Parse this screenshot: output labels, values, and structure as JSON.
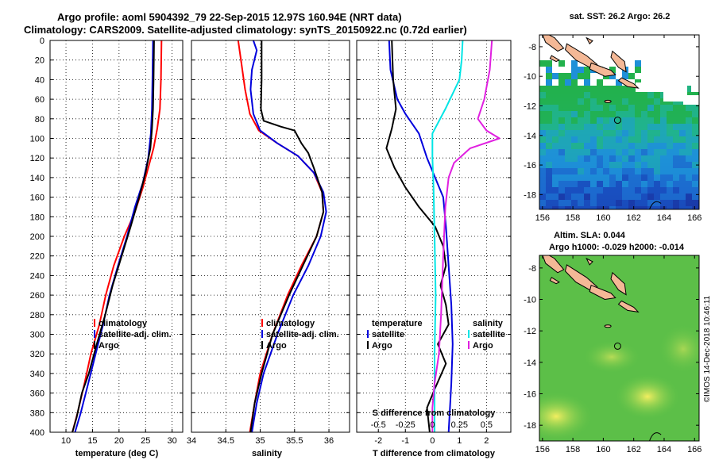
{
  "header": {
    "line1": "Argo profile: aoml 5904392_79 22-Sep-2015 12.97S 160.94E (NRT data)",
    "line2": "Climatology: CARS2009. Satellite-adjusted climatology: synTS_20150922.nc (0.72d earlier)"
  },
  "colors": {
    "climatology": "#ff0000",
    "satellite": "#0000dd",
    "argo": "#000000",
    "sat_salinity": "#00e5e5",
    "clim_salinity": "#e020e0",
    "land": "#f4b896"
  },
  "depth_axis": {
    "ticks": [
      "0",
      "20",
      "40",
      "60",
      "80",
      "100",
      "120",
      "140",
      "160",
      "180",
      "200",
      "220",
      "240",
      "260",
      "280",
      "300",
      "320",
      "340",
      "360",
      "380",
      "400"
    ]
  },
  "chart_data": [
    {
      "type": "line",
      "name": "temperature",
      "xlabel": "temperature (deg C)",
      "ylabel": "depth",
      "xlim": [
        7,
        32
      ],
      "ylim": [
        400,
        0
      ],
      "xticks": [
        "10",
        "15",
        "20",
        "25",
        "30"
      ],
      "legend": [
        "climatology",
        "satellite-adj. clim.",
        "Argo"
      ],
      "series": [
        {
          "name": "climatology",
          "color": "red",
          "points": [
            [
              28.0,
              0
            ],
            [
              27.9,
              40
            ],
            [
              27.7,
              70
            ],
            [
              27.2,
              90
            ],
            [
              26.5,
              110
            ],
            [
              25.5,
              130
            ],
            [
              24.5,
              150
            ],
            [
              23.0,
              175
            ],
            [
              21.0,
              200
            ],
            [
              19.0,
              230
            ],
            [
              17.5,
              260
            ],
            [
              16.3,
              290
            ],
            [
              14.7,
              320
            ],
            [
              13.5,
              350
            ],
            [
              12.2,
              380
            ],
            [
              11.2,
              400
            ]
          ]
        },
        {
          "name": "satellite-adj. clim.",
          "color": "blue",
          "points": [
            [
              26.4,
              0
            ],
            [
              26.3,
              40
            ],
            [
              26.2,
              70
            ],
            [
              26.0,
              95
            ],
            [
              25.5,
              120
            ],
            [
              24.5,
              145
            ],
            [
              23.0,
              170
            ],
            [
              21.5,
              200
            ],
            [
              19.8,
              230
            ],
            [
              18.2,
              260
            ],
            [
              17.0,
              290
            ],
            [
              15.6,
              320
            ],
            [
              14.2,
              350
            ],
            [
              12.8,
              380
            ],
            [
              11.7,
              400
            ]
          ]
        },
        {
          "name": "Argo",
          "color": "black",
          "points": [
            [
              26.6,
              0
            ],
            [
              26.5,
              40
            ],
            [
              26.4,
              70
            ],
            [
              26.2,
              90
            ],
            [
              25.9,
              110
            ],
            [
              25.0,
              135
            ],
            [
              23.8,
              160
            ],
            [
              22.2,
              190
            ],
            [
              20.5,
              220
            ],
            [
              18.8,
              250
            ],
            [
              17.4,
              280
            ],
            [
              15.8,
              310
            ],
            [
              14.3,
              340
            ],
            [
              13.0,
              360
            ],
            [
              12.0,
              385
            ],
            [
              11.2,
              400
            ]
          ]
        }
      ]
    },
    {
      "type": "line",
      "name": "salinity",
      "xlabel": "salinity",
      "ylabel": "depth",
      "xlim": [
        34.0,
        36.3
      ],
      "ylim": [
        400,
        0
      ],
      "xticks": [
        "34",
        "34.5",
        "35",
        "35.5",
        "36"
      ],
      "legend": [
        "climatology",
        "satellite-adj. clim.",
        "Argo"
      ],
      "series": [
        {
          "name": "climatology",
          "color": "red",
          "points": [
            [
              34.68,
              0
            ],
            [
              34.72,
              20
            ],
            [
              34.78,
              50
            ],
            [
              34.85,
              75
            ],
            [
              34.98,
              92
            ],
            [
              35.25,
              105
            ],
            [
              35.55,
              118
            ],
            [
              35.78,
              135
            ],
            [
              35.9,
              155
            ],
            [
              35.92,
              175
            ],
            [
              35.82,
              200
            ],
            [
              35.6,
              230
            ],
            [
              35.4,
              260
            ],
            [
              35.18,
              300
            ],
            [
              35.0,
              340
            ],
            [
              34.92,
              370
            ],
            [
              34.85,
              400
            ]
          ]
        },
        {
          "name": "satellite-adj. clim.",
          "color": "blue",
          "points": [
            [
              34.9,
              0
            ],
            [
              34.95,
              10
            ],
            [
              34.88,
              30
            ],
            [
              34.86,
              50
            ],
            [
              34.9,
              75
            ],
            [
              35.0,
              92
            ],
            [
              35.25,
              105
            ],
            [
              35.55,
              118
            ],
            [
              35.78,
              135
            ],
            [
              35.92,
              155
            ],
            [
              35.96,
              175
            ],
            [
              35.88,
              200
            ],
            [
              35.7,
              230
            ],
            [
              35.48,
              260
            ],
            [
              35.25,
              300
            ],
            [
              35.05,
              340
            ],
            [
              34.95,
              370
            ],
            [
              34.88,
              400
            ]
          ]
        },
        {
          "name": "Argo",
          "color": "black",
          "points": [
            [
              35.02,
              0
            ],
            [
              35.02,
              40
            ],
            [
              35.01,
              70
            ],
            [
              35.05,
              82
            ],
            [
              35.3,
              88
            ],
            [
              35.5,
              92
            ],
            [
              35.6,
              105
            ],
            [
              35.7,
              115
            ],
            [
              35.78,
              130
            ],
            [
              35.9,
              155
            ],
            [
              35.92,
              175
            ],
            [
              35.82,
              200
            ],
            [
              35.62,
              230
            ],
            [
              35.42,
              260
            ],
            [
              35.18,
              300
            ],
            [
              35.02,
              340
            ],
            [
              34.92,
              370
            ],
            [
              34.86,
              400
            ]
          ]
        }
      ]
    },
    {
      "type": "line",
      "name": "difference",
      "xlabel": "T difference from climatology",
      "top_xlabel": "S difference from climatology",
      "ylabel": "depth",
      "xlim": [
        -2.8,
        2.9
      ],
      "ylim": [
        400,
        0
      ],
      "xticks": [
        "-2",
        "-1",
        "0",
        "1",
        "2"
      ],
      "top_xlim": [
        -0.7,
        0.725
      ],
      "top_xticks": [
        "-0.5",
        "-0.25",
        "0",
        "0.25",
        "0.5"
      ],
      "legend_left_title": "temperature",
      "legend_right_title": "salinity",
      "legend_left": [
        "satellite",
        "Argo"
      ],
      "legend_right": [
        "satellite",
        "Argo"
      ],
      "series": [
        {
          "name": "T satellite",
          "color": "blue",
          "points": [
            [
              -1.6,
              0
            ],
            [
              -1.55,
              30
            ],
            [
              -1.3,
              60
            ],
            [
              -1.0,
              75
            ],
            [
              -0.5,
              95
            ],
            [
              -0.2,
              120
            ],
            [
              0.1,
              140
            ],
            [
              0.4,
              160
            ],
            [
              0.5,
              190
            ],
            [
              0.6,
              230
            ],
            [
              0.7,
              270
            ],
            [
              0.75,
              310
            ],
            [
              0.7,
              350
            ],
            [
              0.6,
              400
            ]
          ]
        },
        {
          "name": "T Argo",
          "color": "black",
          "points": [
            [
              -1.5,
              0
            ],
            [
              -1.45,
              40
            ],
            [
              -1.35,
              70
            ],
            [
              -1.5,
              90
            ],
            [
              -1.7,
              110
            ],
            [
              -1.4,
              130
            ],
            [
              -1.0,
              150
            ],
            [
              -0.5,
              170
            ],
            [
              0.1,
              190
            ],
            [
              0.4,
              210
            ],
            [
              0.5,
              230
            ],
            [
              0.3,
              250
            ],
            [
              0.5,
              270
            ],
            [
              0.6,
              290
            ],
            [
              0.2,
              310
            ],
            [
              0.5,
              330
            ],
            [
              0.1,
              355
            ],
            [
              -0.2,
              375
            ],
            [
              -0.1,
              400
            ]
          ]
        },
        {
          "name": "S satellite",
          "color": "cyan",
          "points": [
            [
              0.28,
              0
            ],
            [
              0.27,
              20
            ],
            [
              0.25,
              40
            ],
            [
              0.12,
              70
            ],
            [
              0.0,
              95
            ],
            [
              0.0,
              120
            ],
            [
              0.01,
              150
            ],
            [
              0.02,
              200
            ],
            [
              0.03,
              260
            ],
            [
              0.02,
              320
            ],
            [
              0.02,
              400
            ]
          ]
        },
        {
          "name": "S Argo",
          "color": "magenta",
          "points": [
            [
              0.55,
              0
            ],
            [
              0.53,
              30
            ],
            [
              0.48,
              60
            ],
            [
              0.42,
              80
            ],
            [
              0.5,
              92
            ],
            [
              0.62,
              100
            ],
            [
              0.35,
              110
            ],
            [
              0.2,
              125
            ],
            [
              0.15,
              140
            ],
            [
              0.12,
              170
            ],
            [
              0.1,
              220
            ],
            [
              0.08,
              280
            ],
            [
              0.06,
              320
            ],
            [
              0.02,
              350
            ],
            [
              0.0,
              375
            ],
            [
              0.0,
              400
            ]
          ]
        }
      ]
    },
    {
      "type": "heatmap",
      "name": "sst map",
      "title": "sat. SST: 26.2  Argo: 26.2",
      "xlim": [
        155.8,
        166.3
      ],
      "ylim": [
        -19,
        -7.2
      ],
      "xticks": [
        "156",
        "158",
        "160",
        "162",
        "164",
        "166"
      ],
      "yticks": [
        "-8",
        "-10",
        "-12",
        "-14",
        "-16",
        "-18"
      ],
      "marker": [
        160.94,
        -12.97
      ]
    },
    {
      "type": "heatmap",
      "name": "sla map",
      "title_line1": "Altim. SLA: 0.044",
      "title_line2": "Argo h1000: -0.029  h2000: -0.014",
      "xlim": [
        155.8,
        166.3
      ],
      "ylim": [
        -19,
        -7.2
      ],
      "xticks": [
        "156",
        "158",
        "160",
        "162",
        "164",
        "166"
      ],
      "yticks": [
        "-8",
        "-10",
        "-12",
        "-14",
        "-16",
        "-18"
      ],
      "marker": [
        160.94,
        -12.97
      ]
    }
  ],
  "credit": "©IMOS 14-Dec-2018 10:46:11"
}
